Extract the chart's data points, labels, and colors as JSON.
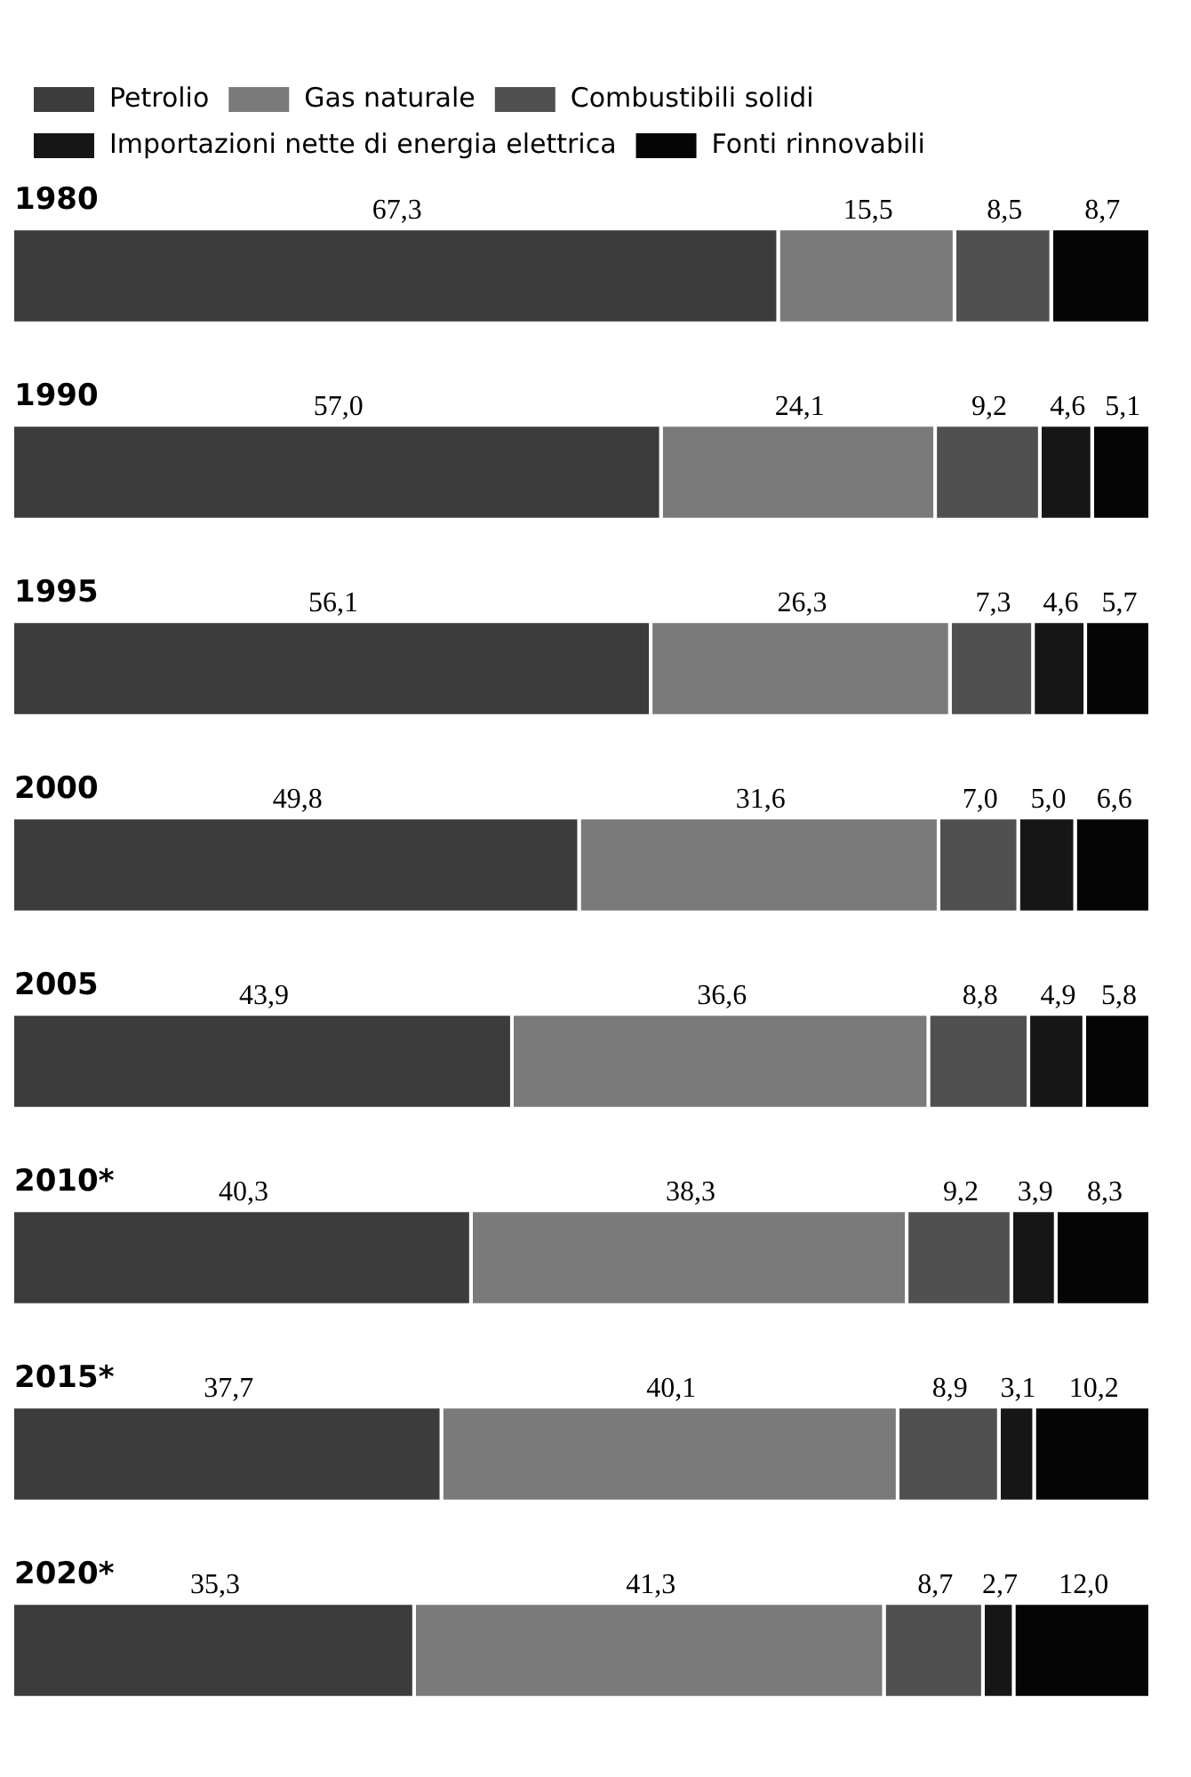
{
  "chart_data": {
    "type": "bar",
    "orientation": "horizontal",
    "stacked": true,
    "legend": "top",
    "categories": [
      "1980",
      "1990",
      "1995",
      "2000",
      "2005",
      "2010*",
      "2015*",
      "2020*"
    ],
    "series": [
      {
        "name": "Petrolio",
        "color": "#3c3c3c",
        "values": [
          67.3,
          57.0,
          56.1,
          49.8,
          43.9,
          40.3,
          37.7,
          35.3
        ],
        "value_labels": [
          "67,3",
          "57,0",
          "56,1",
          "49,8",
          "43,9",
          "40,3",
          "37,7",
          "35,3"
        ]
      },
      {
        "name": "Gas naturale",
        "color": "#7a7a7a",
        "values": [
          15.5,
          24.1,
          26.3,
          31.6,
          36.6,
          38.3,
          40.1,
          41.3
        ],
        "value_labels": [
          "15,5",
          "24,1",
          "26,3",
          "31,6",
          "36,6",
          "38,3",
          "40,1",
          "41,3"
        ]
      },
      {
        "name": "Combustibili solidi",
        "color": "#505050",
        "values": [
          8.5,
          9.2,
          7.3,
          7.0,
          8.8,
          9.2,
          8.9,
          8.7
        ],
        "value_labels": [
          "8,5",
          "9,2",
          "7,3",
          "7,0",
          "8,8",
          "9,2",
          "8,9",
          "8,7"
        ]
      },
      {
        "name": "Importazioni nette di energia elettrica",
        "color": "#161616",
        "values": [
          null,
          4.6,
          4.6,
          5.0,
          4.9,
          3.9,
          3.1,
          2.7
        ],
        "value_labels": [
          null,
          "4,6",
          "4,6",
          "5,0",
          "4,9",
          "3,9",
          "3,1",
          "2,7"
        ]
      },
      {
        "name": "Fonti rinnovabili",
        "color": "#050505",
        "values": [
          8.7,
          5.1,
          5.7,
          6.6,
          5.8,
          8.3,
          10.2,
          12.0
        ],
        "value_labels": [
          "8,7",
          "5,1",
          "5,7",
          "6,6",
          "5,8",
          "8,3",
          "10,2",
          "12,0"
        ]
      }
    ]
  }
}
